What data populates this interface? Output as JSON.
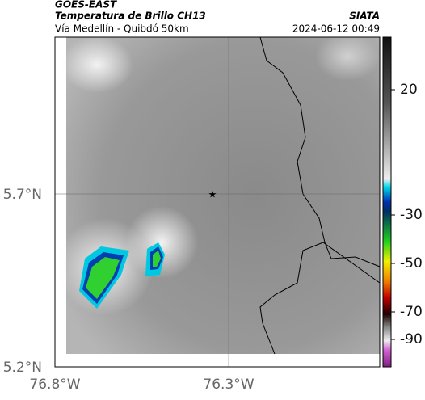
{
  "header": {
    "source": "GOES-EAST",
    "product": "Temperatura de Brillo CH13",
    "region": "Vía Medellín - Quibdó 50km",
    "agency": "SIATA",
    "timestamp": "2024-06-12 00:49"
  },
  "axes": {
    "lat_labels": [
      "5.7°N",
      "5.2°N"
    ],
    "lon_labels": [
      "76.8°W",
      "76.3°W"
    ]
  },
  "colorbar": {
    "labels": [
      "20",
      "-30",
      "-50",
      "-70",
      "-90"
    ]
  }
}
